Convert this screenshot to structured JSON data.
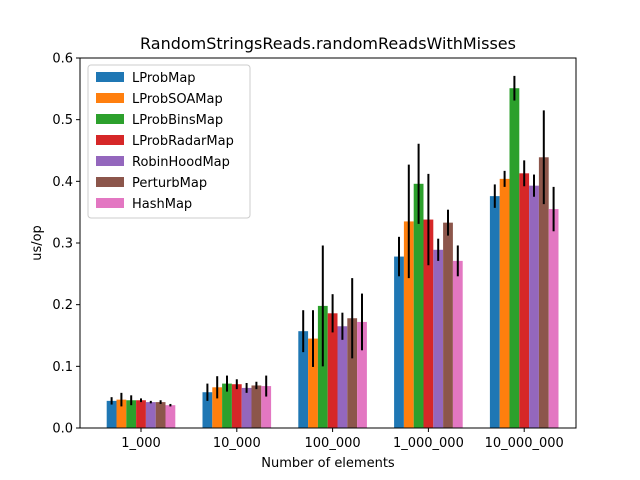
{
  "chart_data": {
    "type": "bar",
    "title": "RandomStringsReads.randomReadsWithMisses",
    "xlabel": "Number of elements",
    "ylabel": "us/op",
    "categories": [
      "1_000",
      "10_000",
      "100_000",
      "1_000_000",
      "10_000_000"
    ],
    "ylim": [
      0,
      0.6
    ],
    "yticks": [
      0.0,
      0.1,
      0.2,
      0.3,
      0.4,
      0.5,
      0.6
    ],
    "ytick_labels": [
      "0.0",
      "0.1",
      "0.2",
      "0.3",
      "0.4",
      "0.5",
      "0.6"
    ],
    "grid": false,
    "legend_position": "top-left",
    "series": [
      {
        "name": "LProbMap",
        "color": "#1f77b4",
        "values": [
          0.044,
          0.058,
          0.157,
          0.278,
          0.376
        ],
        "errors": [
          0.006,
          0.014,
          0.034,
          0.032,
          0.019
        ]
      },
      {
        "name": "LProbSOAMap",
        "color": "#ff7f0e",
        "values": [
          0.046,
          0.066,
          0.145,
          0.335,
          0.404
        ],
        "errors": [
          0.011,
          0.018,
          0.046,
          0.092,
          0.013
        ]
      },
      {
        "name": "LProbBinsMap",
        "color": "#2ca02c",
        "values": [
          0.045,
          0.072,
          0.198,
          0.396,
          0.551
        ],
        "errors": [
          0.008,
          0.013,
          0.098,
          0.065,
          0.02
        ]
      },
      {
        "name": "LProbRadarMap",
        "color": "#d62728",
        "values": [
          0.045,
          0.071,
          0.186,
          0.338,
          0.413
        ],
        "errors": [
          0.003,
          0.008,
          0.031,
          0.074,
          0.021
        ]
      },
      {
        "name": "RobinHoodMap",
        "color": "#9467bd",
        "values": [
          0.042,
          0.065,
          0.165,
          0.289,
          0.393
        ],
        "errors": [
          0.002,
          0.008,
          0.022,
          0.018,
          0.018
        ]
      },
      {
        "name": "PerturbMap",
        "color": "#8c564b",
        "values": [
          0.042,
          0.069,
          0.178,
          0.333,
          0.439
        ],
        "errors": [
          0.003,
          0.006,
          0.065,
          0.021,
          0.076
        ]
      },
      {
        "name": "HashMap",
        "color": "#e377c2",
        "values": [
          0.037,
          0.068,
          0.172,
          0.271,
          0.355
        ],
        "errors": [
          0.002,
          0.017,
          0.046,
          0.025,
          0.036
        ]
      }
    ]
  }
}
